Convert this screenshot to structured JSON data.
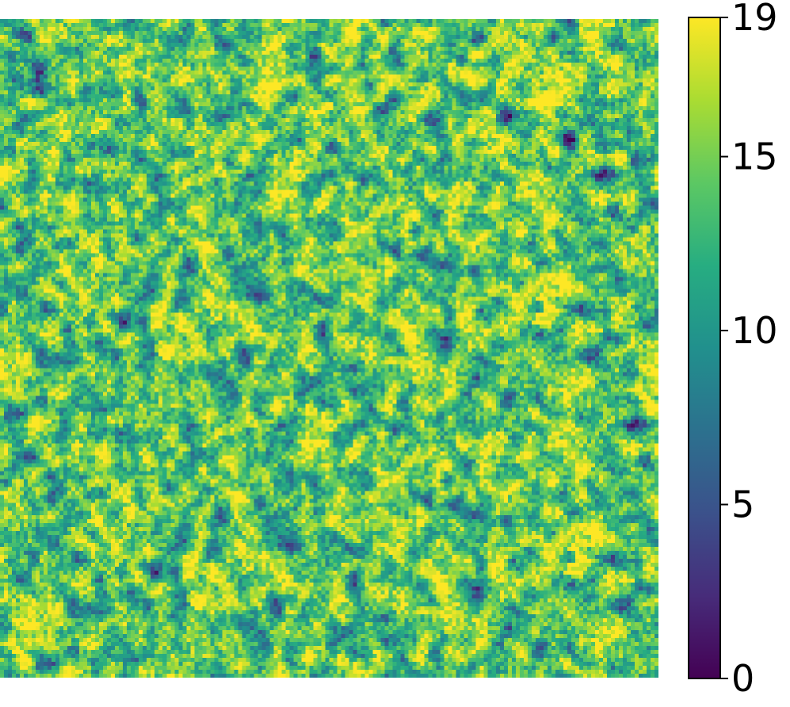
{
  "chart_data": {
    "type": "heatmap",
    "title": "",
    "xlabel": "",
    "ylabel": "",
    "grid": false,
    "grid_size": [
      166,
      166
    ],
    "colormap": "viridis",
    "value_range": [
      0,
      19
    ],
    "colorbar": {
      "ticks": [
        0,
        5,
        10,
        15,
        19
      ],
      "tick_labels": [
        "0",
        "5",
        "10",
        "15",
        "19"
      ]
    },
    "value_distribution_note_values": {
      "dominant_value": 19,
      "typical_range": [
        8,
        19
      ]
    }
  }
}
